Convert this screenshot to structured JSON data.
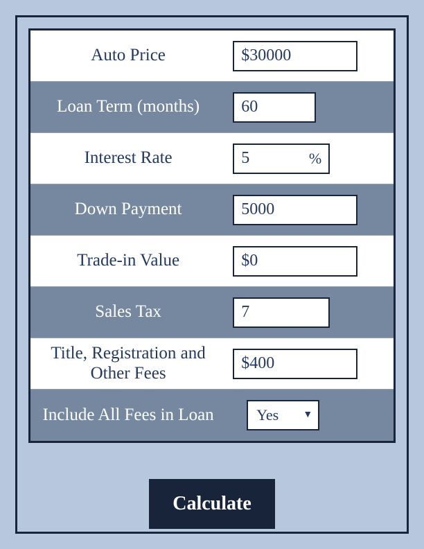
{
  "colors": {
    "page_bg": "#b7c8de",
    "row_alt_bg": "#75889f",
    "row_plain_bg": "#ffffff",
    "border": "#18243a",
    "text_dark": "#233a5e",
    "text_light": "#ffffff",
    "button_bg": "#18243a",
    "button_text": "#ffffff"
  },
  "typography": {
    "family": "Georgia, serif",
    "label_fontsize": 25,
    "input_fontsize": 24,
    "button_fontsize": 28
  },
  "form": {
    "rows": [
      {
        "label": "Auto Price",
        "value": "$30000",
        "variant": "plain",
        "width": "w180",
        "suffix": ""
      },
      {
        "label": "Loan Term (months)",
        "value": "60",
        "variant": "alt",
        "width": "w120",
        "suffix": ""
      },
      {
        "label": "Interest Rate",
        "value": "5",
        "variant": "plain",
        "width": "w140",
        "suffix": "%"
      },
      {
        "label": "Down Payment",
        "value": "5000",
        "variant": "alt",
        "width": "w180",
        "suffix": ""
      },
      {
        "label": "Trade-in Value",
        "value": "$0",
        "variant": "plain",
        "width": "w180",
        "suffix": ""
      },
      {
        "label": "Sales Tax",
        "value": "7",
        "variant": "alt",
        "width": "w140",
        "suffix": ""
      },
      {
        "label": "Title, Registration and Other Fees",
        "value": "$400",
        "variant": "plain",
        "width": "w180",
        "suffix": ""
      }
    ],
    "select_row": {
      "label": "Include All Fees in Loan",
      "value": "Yes"
    }
  },
  "button": {
    "label": "Calculate"
  }
}
